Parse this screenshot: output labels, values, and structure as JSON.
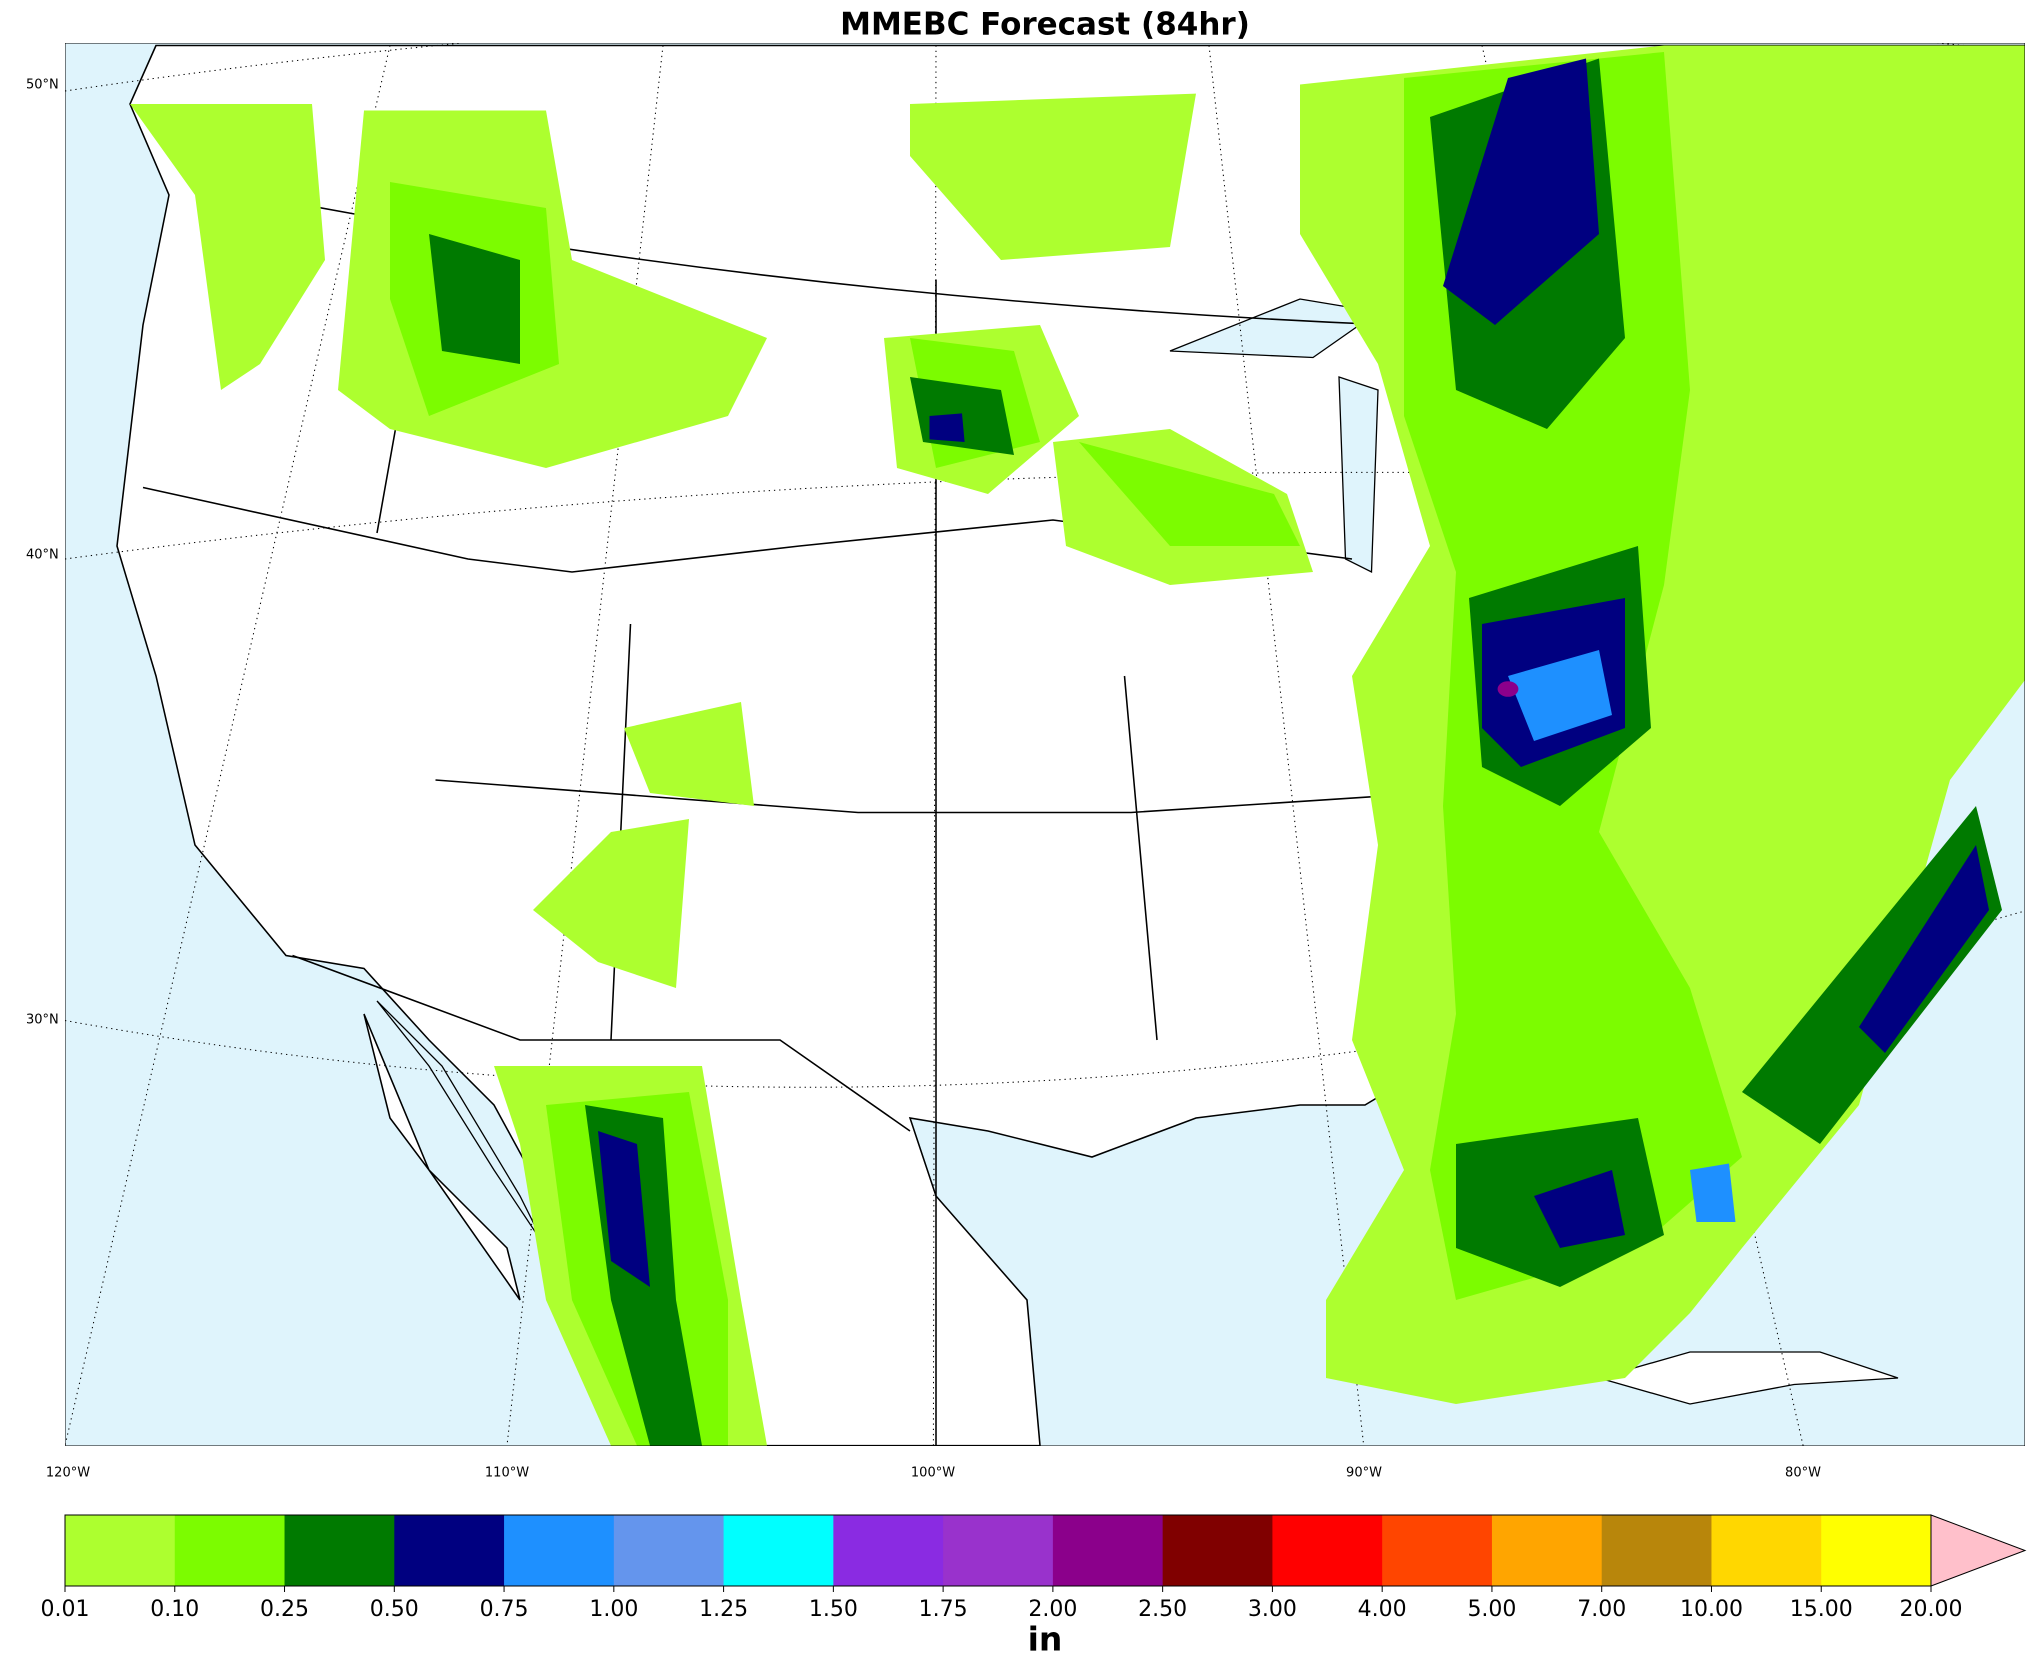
{
  "title": "MMEBC Forecast (84hr)",
  "latitude_labels": [
    "50°N",
    "40°N",
    "30°N"
  ],
  "longitude_labels": [
    "120°W",
    "110°W",
    "100°W",
    "90°W",
    "80°W"
  ],
  "colorbar": {
    "label": "in",
    "ticks": [
      {
        "value": 0.01,
        "label": "0.01"
      },
      {
        "value": 0.1,
        "label": "0.10"
      },
      {
        "value": 0.25,
        "label": "0.25"
      },
      {
        "value": 0.5,
        "label": "0.50"
      },
      {
        "value": 0.75,
        "label": "0.75"
      },
      {
        "value": 1,
        "label": "1.00"
      },
      {
        "value": 1.25,
        "label": "1.25"
      },
      {
        "value": 1.5,
        "label": "1.50"
      },
      {
        "value": 1.75,
        "label": "1.75"
      },
      {
        "value": 2,
        "label": "2.00"
      },
      {
        "value": 2.5,
        "label": "2.50"
      },
      {
        "value": 3,
        "label": "3.00"
      },
      {
        "value": 4,
        "label": "4.00"
      },
      {
        "value": 5,
        "label": "5.00"
      },
      {
        "value": 7,
        "label": "7.00"
      },
      {
        "value": 10,
        "label": "10.00"
      },
      {
        "value": 15,
        "label": "15.00"
      },
      {
        "value": 20,
        "label": "20.00"
      }
    ],
    "colors": [
      "#adff2f",
      "#7cfc00",
      "#007a00",
      "#000080",
      "#1e90ff",
      "#6495ed",
      "#00ffff",
      "#8a2be2",
      "#9932cc",
      "#8b008b",
      "#800000",
      "#ff0000",
      "#ff4500",
      "#ffa500",
      "#b8860b",
      "#ffd700",
      "#ffff00"
    ],
    "extend_color": "#ffc0cb"
  }
}
